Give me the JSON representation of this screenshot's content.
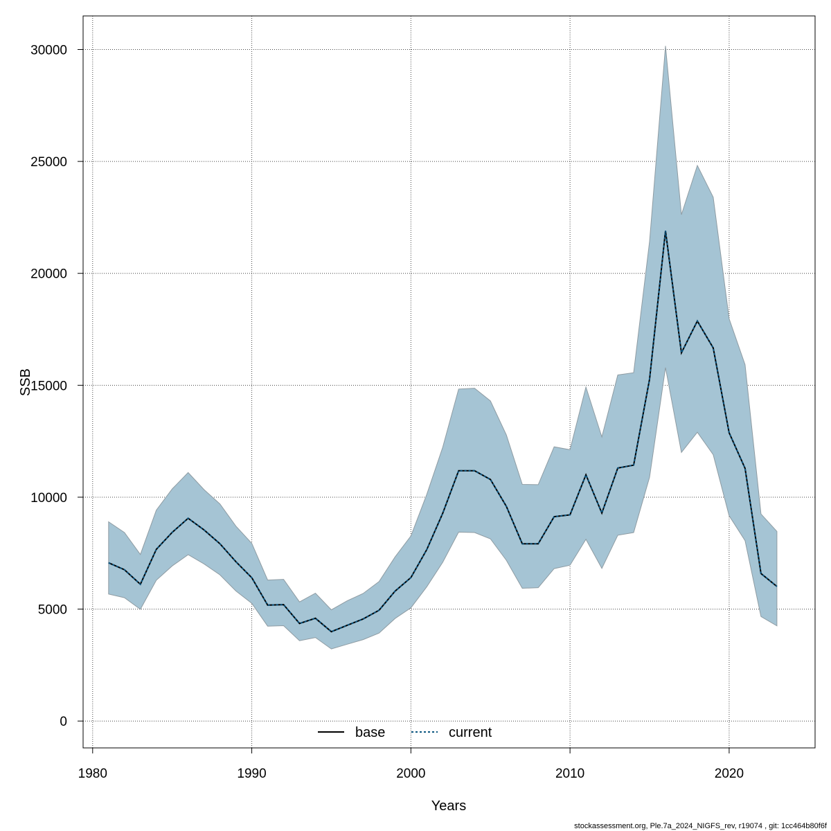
{
  "chart_data": {
    "type": "line",
    "title": "",
    "xlabel": "Years",
    "ylabel": "SSB",
    "xlim": [
      1979.4,
      2025.4
    ],
    "ylim": [
      -1200,
      31500
    ],
    "x_ticks": [
      1980,
      1990,
      2000,
      2010,
      2020
    ],
    "y_ticks": [
      0,
      5000,
      10000,
      15000,
      20000,
      25000,
      30000
    ],
    "grid": true,
    "legend_position": "bottom",
    "colors": {
      "band_fill": "#a5c4d4",
      "band_edge": "#8e9ba2",
      "base": "#000000",
      "current": "#0a5580",
      "grid": "#444444"
    },
    "x": [
      1981,
      1982,
      1983,
      1984,
      1985,
      1986,
      1987,
      1988,
      1989,
      1990,
      1991,
      1992,
      1993,
      1994,
      1995,
      1996,
      1997,
      1998,
      1999,
      2000,
      2001,
      2002,
      2003,
      2004,
      2005,
      2006,
      2007,
      2008,
      2009,
      2010,
      2011,
      2012,
      2013,
      2014,
      2015,
      2016,
      2017,
      2018,
      2019,
      2020,
      2021,
      2022,
      2023
    ],
    "band_upper": [
      8900,
      8420,
      7440,
      9420,
      10370,
      11100,
      10340,
      9700,
      8710,
      7940,
      6300,
      6330,
      5320,
      5710,
      4970,
      5370,
      5700,
      6230,
      7330,
      8270,
      10130,
      12230,
      14830,
      14870,
      14300,
      12780,
      10570,
      10560,
      12250,
      12120,
      14920,
      12690,
      15460,
      15560,
      21430,
      30160,
      22620,
      24820,
      23400,
      17970,
      15920,
      9250,
      8470
    ],
    "band_lower": [
      5670,
      5510,
      4990,
      6290,
      6930,
      7430,
      7020,
      6530,
      5810,
      5260,
      4240,
      4260,
      3590,
      3730,
      3220,
      3430,
      3640,
      3930,
      4580,
      5060,
      6000,
      7090,
      8440,
      8420,
      8140,
      7180,
      5930,
      5960,
      6810,
      6960,
      8120,
      6820,
      8300,
      8420,
      10890,
      15790,
      12000,
      12900,
      11900,
      9170,
      8060,
      4670,
      4250
    ],
    "series": [
      {
        "name": "base",
        "values": [
          7070,
          6760,
          6110,
          7670,
          8430,
          9060,
          8540,
          7920,
          7120,
          6400,
          5180,
          5200,
          4360,
          4590,
          3990,
          4280,
          4560,
          4950,
          5800,
          6410,
          7660,
          9280,
          11180,
          11180,
          10790,
          9590,
          7920,
          7920,
          9130,
          9210,
          11000,
          9290,
          11300,
          11430,
          15270,
          21900,
          16450,
          17870,
          16670,
          12880,
          11290,
          6590,
          6010
        ]
      },
      {
        "name": "current",
        "values": [
          7070,
          6760,
          6110,
          7670,
          8430,
          9060,
          8540,
          7920,
          7120,
          6400,
          5180,
          5200,
          4360,
          4590,
          3990,
          4280,
          4560,
          4950,
          5800,
          6410,
          7660,
          9280,
          11180,
          11180,
          10790,
          9590,
          7920,
          7920,
          9130,
          9210,
          11000,
          9290,
          11300,
          11430,
          15270,
          21900,
          16450,
          17870,
          16670,
          12880,
          11290,
          6590,
          6010
        ]
      }
    ],
    "legend": [
      "base",
      "current"
    ]
  },
  "footer": "stockassessment.org, Ple.7a_2024_NIGFS_rev, r19074 , git: 1cc464b80f6f"
}
